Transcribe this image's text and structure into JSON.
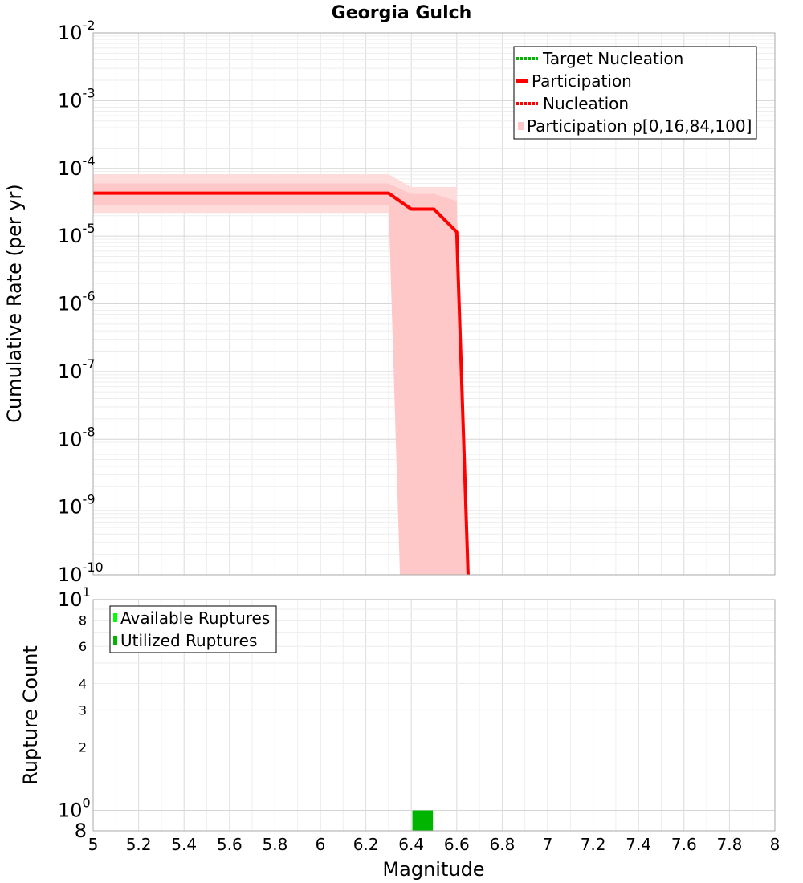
{
  "chart_data": [
    {
      "type": "line",
      "title": "Georgia Gulch",
      "xlabel": "",
      "ylabel": "Cumulative Rate (per yr)",
      "yscale": "log",
      "xlim": [
        5,
        8
      ],
      "ylim": [
        1e-10,
        0.01
      ],
      "x_ticks": [
        5,
        5.2,
        5.4,
        5.6,
        5.8,
        6,
        6.2,
        6.4,
        6.6,
        6.8,
        7,
        7.2,
        7.4,
        7.6,
        7.8,
        8
      ],
      "y_tick_labels": [
        {
          "exp": -2,
          "base": "10",
          "sup": "-2"
        },
        {
          "exp": -3,
          "base": "10",
          "sup": "-3"
        },
        {
          "exp": -4,
          "base": "10",
          "sup": "-4"
        },
        {
          "exp": -5,
          "base": "10",
          "sup": "-5"
        },
        {
          "exp": -6,
          "base": "10",
          "sup": "-6"
        },
        {
          "exp": -7,
          "base": "10",
          "sup": "-7"
        },
        {
          "exp": -8,
          "base": "10",
          "sup": "-8"
        },
        {
          "exp": -9,
          "base": "10",
          "sup": "-9"
        },
        {
          "exp": -10,
          "base": "10",
          "sup": "-10"
        }
      ],
      "grid": true,
      "legend_position": "top-right",
      "legend": [
        {
          "label": "Target Nucleation",
          "style": "dotted",
          "color": "#00b400"
        },
        {
          "label": "Participation",
          "style": "solid",
          "color": "#ff0000"
        },
        {
          "label": "Nucleation",
          "style": "dotted",
          "color": "#ff0000"
        },
        {
          "label": "Participation p[0,16,84,100]",
          "style": "band",
          "color": "#ffc8c8"
        }
      ],
      "series": [
        {
          "name": "Participation",
          "color": "#ff0000",
          "x": [
            5.0,
            6.3,
            6.4,
            6.5,
            6.6,
            6.65
          ],
          "y": [
            4.3e-05,
            4.3e-05,
            2.5e-05,
            2.5e-05,
            1.15e-05,
            1e-10
          ]
        },
        {
          "name": "Nucleation",
          "color": "#ff0000",
          "x": [
            5.0,
            6.3,
            6.4,
            6.5,
            6.6,
            6.65
          ],
          "y": [
            4.3e-05,
            4.3e-05,
            2.5e-05,
            2.5e-05,
            1.15e-05,
            1e-10
          ]
        }
      ],
      "bands": [
        {
          "name": "p0-p100",
          "color": "#ffdcdc",
          "x": [
            5.0,
            6.3,
            6.4,
            6.6
          ],
          "lower": [
            2.2e-05,
            2.2e-05,
            1e-10,
            1e-10
          ],
          "upper": [
            8.2e-05,
            8.2e-05,
            5.3e-05,
            5.3e-05
          ]
        },
        {
          "name": "p16-p84",
          "color": "#ffc8c8",
          "x": [
            5.0,
            6.3,
            6.35,
            6.4,
            6.5,
            6.6,
            6.65
          ],
          "lower": [
            2.9e-05,
            2.9e-05,
            1e-10,
            1e-10,
            1e-10,
            1e-10,
            1e-10
          ],
          "upper": [
            6e-05,
            6e-05,
            5e-05,
            4.2e-05,
            4.2e-05,
            3.3e-05,
            1e-10
          ]
        }
      ]
    },
    {
      "type": "bar",
      "title": "",
      "xlabel": "Magnitude",
      "ylabel": "Rupture Count",
      "yscale": "log",
      "xlim": [
        5,
        8
      ],
      "ylim": [
        0.8,
        10
      ],
      "x_ticks": [
        5,
        5.2,
        5.4,
        5.6,
        5.8,
        6,
        6.2,
        6.4,
        6.6,
        6.8,
        7,
        7.2,
        7.4,
        7.6,
        7.8,
        8
      ],
      "x_tick_labels": [
        "5",
        "5.2",
        "5.4",
        "5.6",
        "5.8",
        "6",
        "6.2",
        "6.4",
        "6.6",
        "6.8",
        "7",
        "7.2",
        "7.4",
        "7.6",
        "7.8",
        "8"
      ],
      "y_ticks": [
        {
          "value": 10,
          "base": "10",
          "sup": "1"
        },
        {
          "value": 8,
          "label": "8"
        },
        {
          "value": 6,
          "label": "6"
        },
        {
          "value": 4,
          "label": "4"
        },
        {
          "value": 3,
          "label": "3"
        },
        {
          "value": 2,
          "label": "2"
        },
        {
          "value": 1,
          "base": "10",
          "sup": "0"
        },
        {
          "value": 0.8,
          "label": "8"
        }
      ],
      "grid": true,
      "legend_position": "top-left",
      "legend": [
        {
          "label": "Available Ruptures",
          "color": "#00ff00"
        },
        {
          "label": "Utilized Ruptures",
          "color": "#00b400"
        }
      ],
      "series": [
        {
          "name": "Available Ruptures",
          "color": "#00ff00",
          "x": [
            6.45
          ],
          "values": [
            1
          ]
        },
        {
          "name": "Utilized Ruptures",
          "color": "#00b400",
          "x": [
            6.45
          ],
          "values": [
            1
          ]
        }
      ],
      "bar_width": 0.09
    }
  ]
}
